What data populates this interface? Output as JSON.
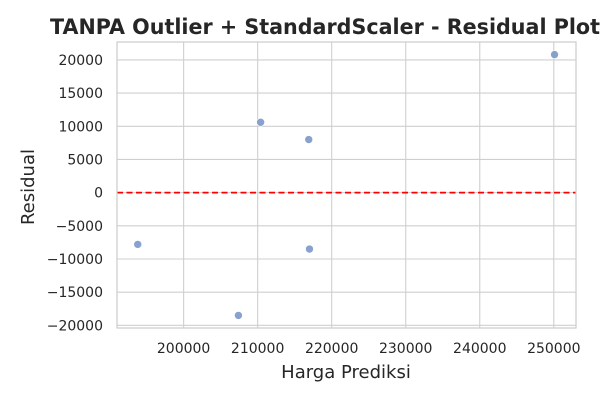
{
  "chart_data": {
    "type": "scatter",
    "title": "TANPA Outlier + StandardScaler - Residual Plot",
    "xlabel": "Harga Prediksi",
    "ylabel": "Residual",
    "xlim": [
      191000,
      253000
    ],
    "ylim": [
      -20400,
      22700
    ],
    "x_ticks": [
      200000,
      210000,
      220000,
      230000,
      240000,
      250000
    ],
    "x_tick_labels": [
      "200000",
      "210000",
      "220000",
      "230000",
      "240000",
      "250000"
    ],
    "y_ticks": [
      -20000,
      -15000,
      -10000,
      -5000,
      0,
      5000,
      10000,
      15000,
      20000
    ],
    "y_tick_labels": [
      "−20000",
      "−15000",
      "−10000",
      "−5000",
      "0",
      "5000",
      "10000",
      "15000",
      "20000"
    ],
    "grid": true,
    "reference_line": {
      "y": 0,
      "style": "dashed",
      "color": "#ff0000"
    },
    "points": [
      {
        "x": 193800,
        "y": -7800
      },
      {
        "x": 207400,
        "y": -18500
      },
      {
        "x": 210400,
        "y": 10600
      },
      {
        "x": 216900,
        "y": 8000
      },
      {
        "x": 217000,
        "y": -8500
      },
      {
        "x": 250100,
        "y": 20800
      }
    ],
    "point_color": "#7b97c9",
    "grid_color": "#cfcfcf",
    "axes_edge_color": "#cccccc"
  }
}
